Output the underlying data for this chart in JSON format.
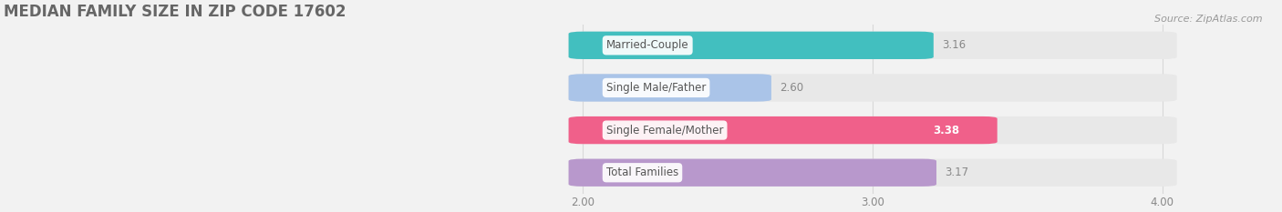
{
  "title": "MEDIAN FAMILY SIZE IN ZIP CODE 17602",
  "source": "Source: ZipAtlas.com",
  "categories": [
    "Married-Couple",
    "Single Male/Father",
    "Single Female/Mother",
    "Total Families"
  ],
  "values": [
    3.16,
    2.6,
    3.38,
    3.17
  ],
  "bar_colors": [
    "#42bfbf",
    "#aac4e8",
    "#f0608a",
    "#b898cc"
  ],
  "bar_height": 0.55,
  "xlim_min": 0.0,
  "xlim_max": 4.4,
  "data_min": 2.0,
  "data_max": 4.0,
  "xticks": [
    2.0,
    3.0,
    4.0
  ],
  "xtick_labels": [
    "2.00",
    "3.00",
    "4.00"
  ],
  "bg_color": "#f2f2f2",
  "bar_bg_color": "#e8e8e8",
  "title_fontsize": 12,
  "label_fontsize": 8.5,
  "value_fontsize": 8.5,
  "source_fontsize": 8,
  "title_color": "#666666",
  "label_color": "#555555",
  "tick_color": "#888888",
  "source_color": "#999999",
  "value_outside_color": "#888888",
  "value_inside_color": "#ffffff",
  "label_pill_color": "#ffffff",
  "label_pill_alpha": 0.92,
  "grid_color": "#d8d8d8",
  "bar_gap": 0.15
}
